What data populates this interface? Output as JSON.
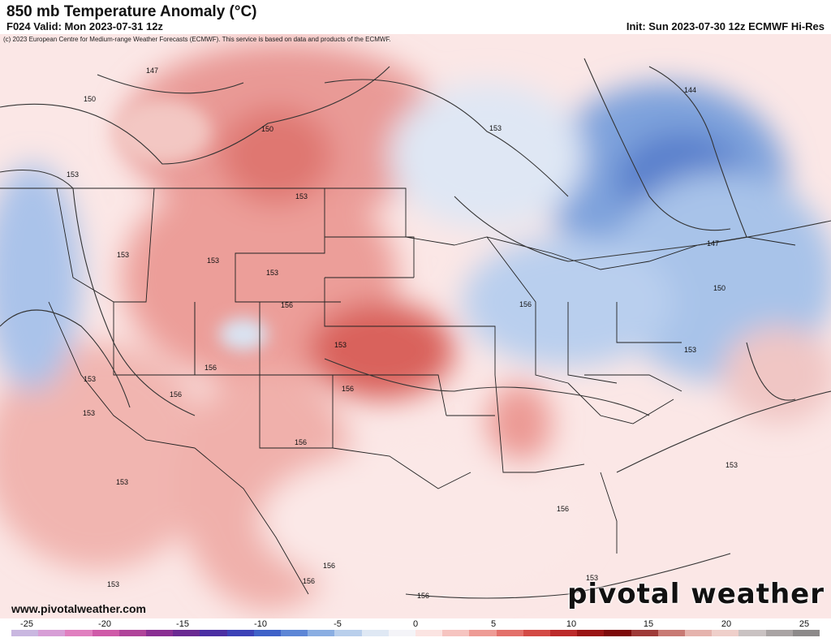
{
  "header": {
    "title": "850 mb Temperature Anomaly (°C)",
    "valid": "F024 Valid: Mon 2023-07-31 12z",
    "init": "Init: Sun 2023-07-30 12z ECMWF Hi-Res"
  },
  "copyright": "(c) 2023 European Centre for Medium-range Weather Forecasts (ECMWF). This service is based on data and products of the ECMWF.",
  "footer": {
    "url": "www.pivotalweather.com",
    "brand": "pivotal weather"
  },
  "colorbar": {
    "ticks": [
      "-25",
      "-20",
      "-15",
      "-10",
      "-5",
      "0",
      "5",
      "10",
      "15",
      "20",
      "25"
    ],
    "colors": [
      "#c9b7e0",
      "#d79ed6",
      "#e07fbf",
      "#cf5aa8",
      "#b0449a",
      "#8a2f93",
      "#6a2a92",
      "#4b2fa3",
      "#3c42b7",
      "#3f62c8",
      "#5d86d6",
      "#8aaee2",
      "#b9cfec",
      "#dfe8f4",
      "#f4f4f8",
      "#fbe4e2",
      "#f6c4c0",
      "#ee9b95",
      "#e3706a",
      "#d34a45",
      "#bb2a2a",
      "#9a1414",
      "#7d0a0a",
      "#9e3a38",
      "#c87a74",
      "#e5b3ad",
      "#efcfca",
      "#c9c2c2",
      "#a9a4a4",
      "#8d8a8a"
    ]
  },
  "contour_labels": [
    "147",
    "150",
    "150",
    "153",
    "153",
    "153",
    "153",
    "153",
    "153",
    "156",
    "156",
    "156",
    "156",
    "156",
    "153",
    "153",
    "156",
    "156",
    "156",
    "156",
    "156",
    "153",
    "144",
    "147",
    "150",
    "153",
    "153",
    "153",
    "153",
    "153"
  ]
}
